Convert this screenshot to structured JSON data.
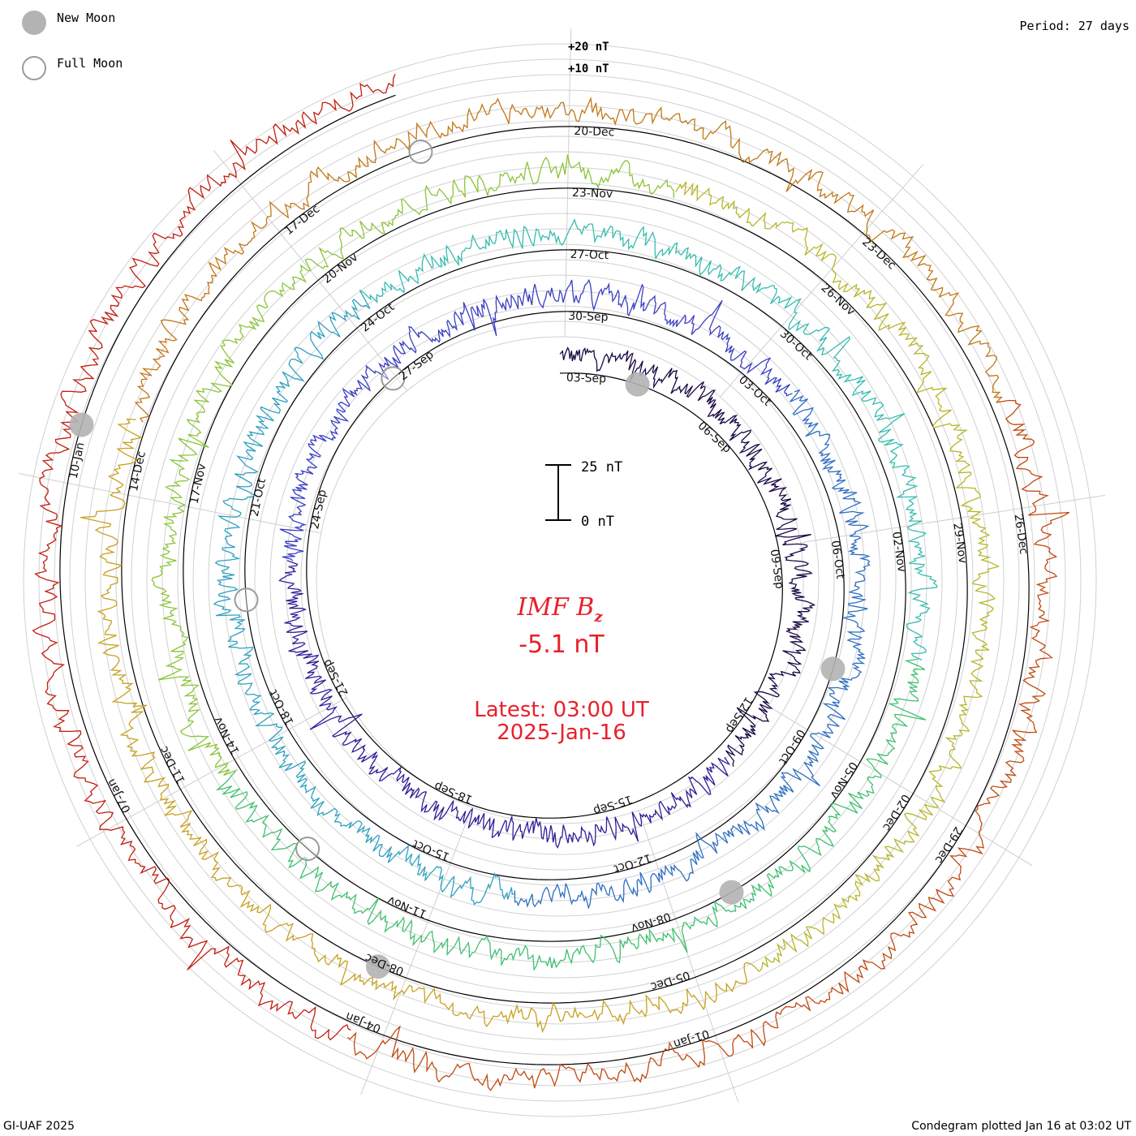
{
  "legend": {
    "new_moon_label": "New Moon",
    "full_moon_label": "Full Moon",
    "new_moon_color": "#b3b3b3",
    "full_moon_color": "#9a9a9a"
  },
  "header": {
    "period": "Period: 27 days"
  },
  "footer": {
    "credit": "GI-UAF 2025",
    "plotted": "Condegram plotted Jan 16 at 03:02 UT"
  },
  "center": {
    "title_main": "IMF B",
    "title_sub": "z",
    "value": "-5.1 nT",
    "latest": "Latest: 03:00 UT",
    "date": "2025-Jan-16",
    "text_color": "#e8202a"
  },
  "chart_data": {
    "type": "condegram",
    "title": "IMF Bz",
    "units": "nT",
    "period_days": 27,
    "scale_bar": {
      "top_label": "25 nT",
      "bottom_label": "0 nT",
      "range_nT": [
        0,
        25
      ]
    },
    "ring_scale_labels": [
      "+20 nT",
      "+10 nT"
    ],
    "rotation_colors": [
      "#1a0a45",
      "#2e1f95",
      "#3b3fc2",
      "#2f6fc0",
      "#2fa0c0",
      "#36bcb0",
      "#40c070",
      "#8cc43a",
      "#b7b52a",
      "#c8a020",
      "#c07818",
      "#c04a12",
      "#c01e10"
    ],
    "rotations": [
      {
        "index": 1,
        "dates": [
          "03-Sep",
          "06-Sep",
          "09-Sep",
          "12-Sep",
          "15-Sep",
          "18-Sep",
          "21-Sep",
          "24-Sep",
          "27-Sep"
        ]
      },
      {
        "index": 2,
        "dates": [
          "30-Sep",
          "03-Oct",
          "06-Oct",
          "09-Oct",
          "12-Oct",
          "15-Oct",
          "18-Oct",
          "21-Oct",
          "24-Oct"
        ]
      },
      {
        "index": 3,
        "dates": [
          "27-Oct",
          "30-Oct",
          "02-Nov",
          "05-Nov",
          "08-Nov",
          "11-Nov",
          "14-Nov",
          "17-Nov",
          "20-Nov"
        ]
      },
      {
        "index": 4,
        "dates": [
          "23-Nov",
          "26-Nov",
          "29-Nov",
          "02-Dec",
          "05-Dec",
          "08-Dec",
          "11-Dec",
          "14-Dec",
          "17-Dec"
        ]
      },
      {
        "index": 5,
        "dates": [
          "20-Dec",
          "23-Dec",
          "26-Dec",
          "29-Dec",
          "01-Jan",
          "04-Jan",
          "07-Jan",
          "10-Jan"
        ]
      }
    ],
    "new_moons_rotation_fraction": [
      0.06,
      0.3,
      0.42,
      0.57,
      0.8
    ],
    "full_moons_rotation_fraction": [
      0.89,
      0.74,
      0.62,
      0.95
    ],
    "latest_value_nT": -5.1,
    "grid": true,
    "legend_position": "top-left"
  }
}
